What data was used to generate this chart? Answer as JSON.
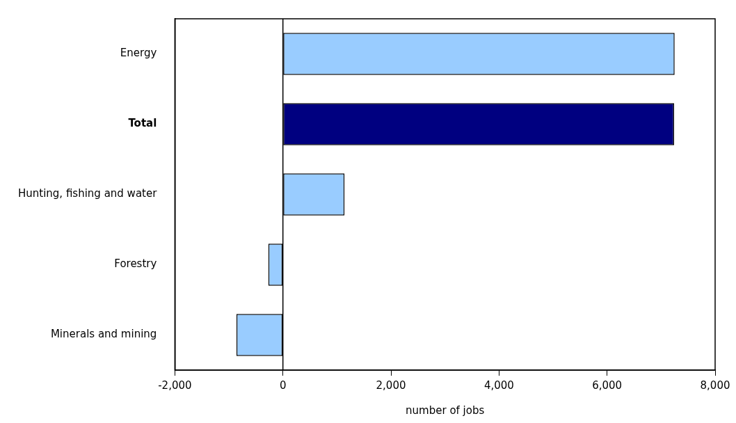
{
  "chart_data": {
    "type": "bar",
    "orientation": "horizontal",
    "xlabel": "number of jobs",
    "categories": [
      "Energy",
      "Total",
      "Hunting, fishing and water",
      "Forestry",
      "Minerals and mining"
    ],
    "values": [
      7250,
      7240,
      1140,
      -270,
      -860
    ],
    "colors": [
      "#99ccff",
      "#000080",
      "#99ccff",
      "#99ccff",
      "#99ccff"
    ],
    "xlim": [
      -2000,
      8000
    ],
    "xticks": [
      {
        "value": -2000,
        "label": "-2,000"
      },
      {
        "value": 0,
        "label": "0"
      },
      {
        "value": 2000,
        "label": "2,000"
      },
      {
        "value": 4000,
        "label": "4,000"
      },
      {
        "value": 6000,
        "label": "6,000"
      },
      {
        "value": 8000,
        "label": "8,000"
      }
    ],
    "ref_lines": [
      {
        "axis": "x",
        "value": 0
      }
    ],
    "grid": false,
    "legend": false
  }
}
